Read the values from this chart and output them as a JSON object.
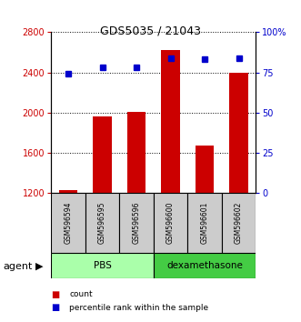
{
  "title": "GDS5035 / 21043",
  "categories": [
    "GSM596594",
    "GSM596595",
    "GSM596596",
    "GSM596600",
    "GSM596601",
    "GSM596602"
  ],
  "bar_values": [
    1230,
    1960,
    2010,
    2620,
    1670,
    2400
  ],
  "pct_values": [
    74,
    78,
    78,
    84,
    83,
    84
  ],
  "bar_color": "#cc0000",
  "pct_color": "#0000cc",
  "ylim_left": [
    1200,
    2800
  ],
  "ylim_right": [
    0,
    100
  ],
  "yticks_left": [
    1200,
    1600,
    2000,
    2400,
    2800
  ],
  "yticks_right": [
    0,
    25,
    50,
    75,
    100
  ],
  "yticklabels_right": [
    "0",
    "25",
    "50",
    "75",
    "100%"
  ],
  "groups": [
    {
      "label": "PBS",
      "color": "#aaffaa",
      "start": 0,
      "end": 2
    },
    {
      "label": "dexamethasone",
      "color": "#44cc44",
      "start": 3,
      "end": 5
    }
  ],
  "agent_label": "agent",
  "legend_count_label": "count",
  "legend_pct_label": "percentile rank within the sample",
  "bar_width": 0.55,
  "sample_box_color": "#cccccc",
  "sample_box_edge": "#000000"
}
